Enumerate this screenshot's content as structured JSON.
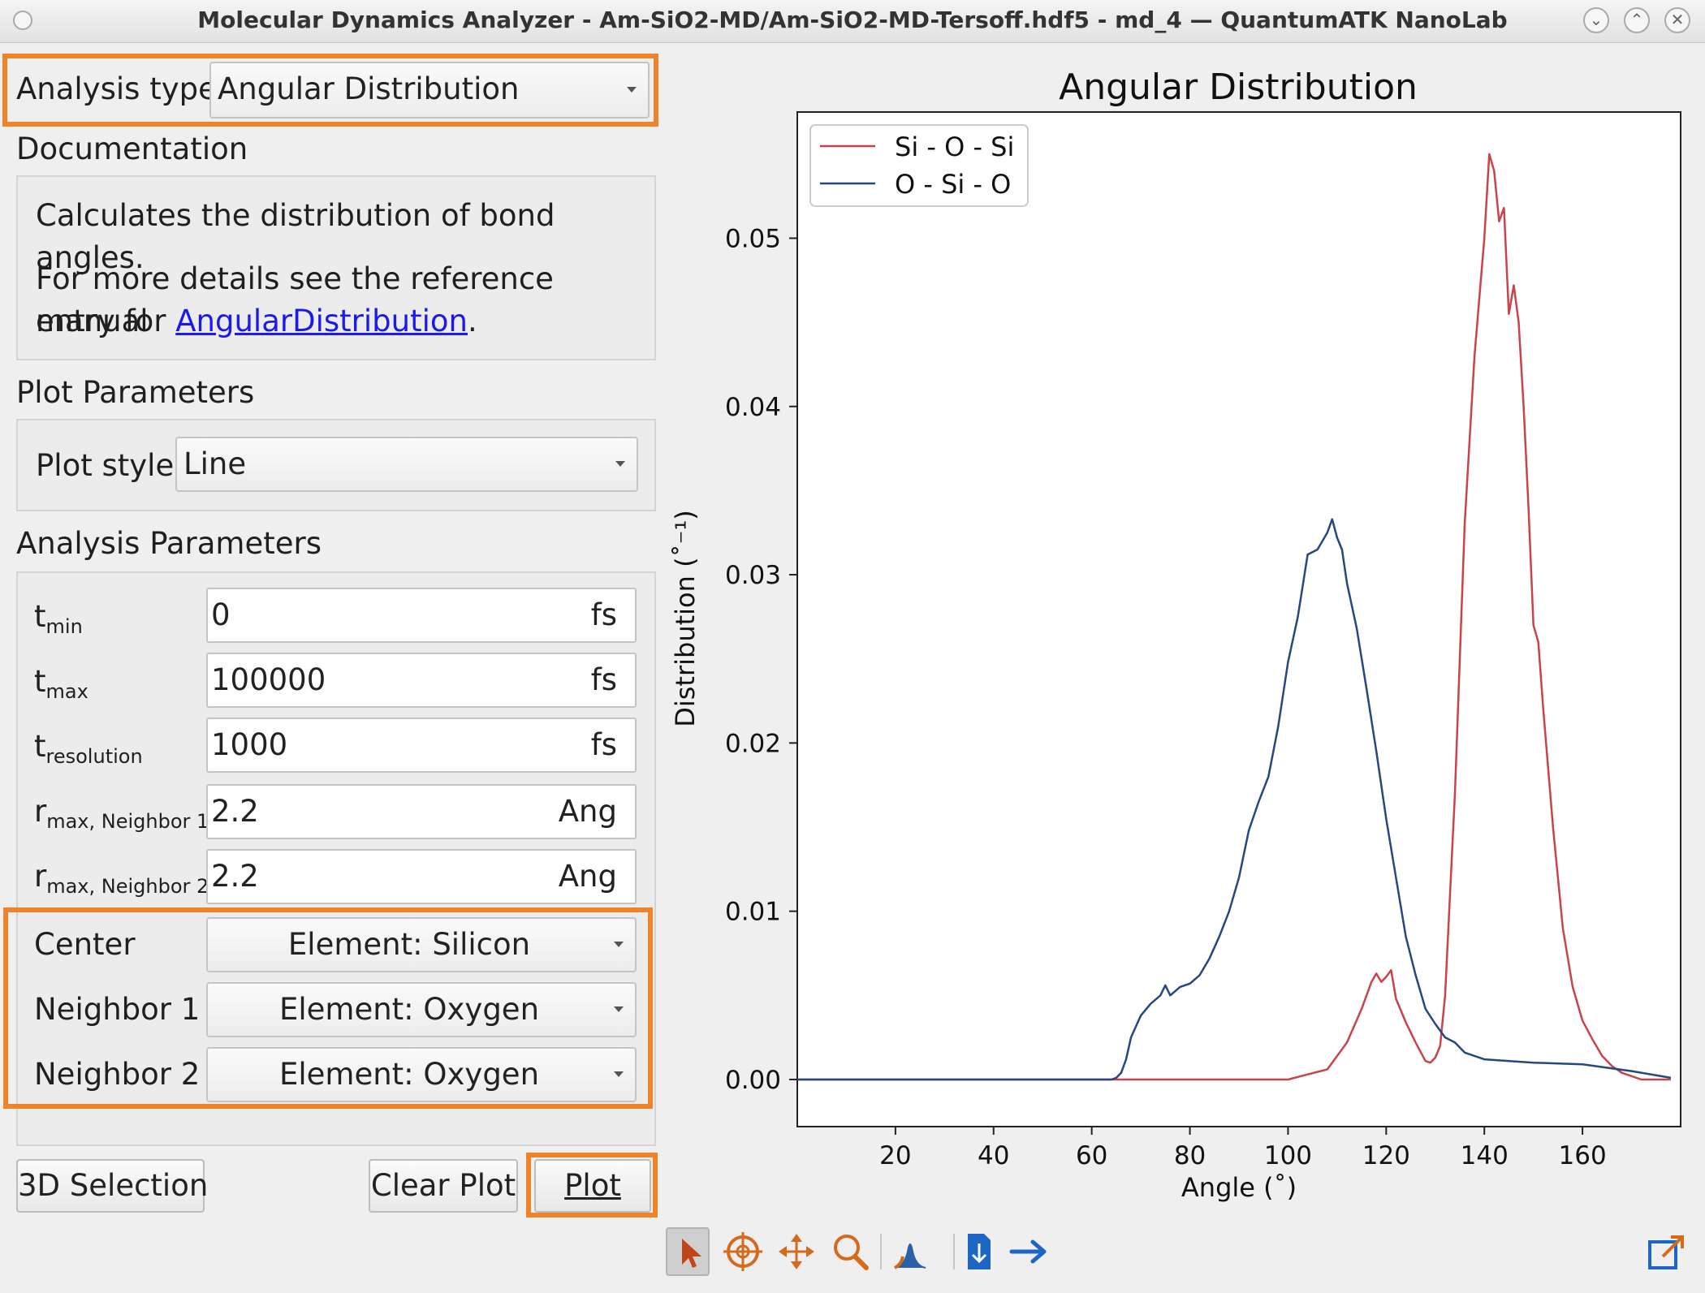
{
  "window": {
    "title": "Molecular Dynamics Analyzer - Am-SiO2-MD/Am-SiO2-MD-Tersoff.hdf5 - md_4 — QuantumATK NanoLab",
    "buttons": {
      "minimize": "⌄",
      "maximize": "⌃",
      "close": "✕"
    }
  },
  "analysis": {
    "label": "Analysis type",
    "value": "Angular Distribution"
  },
  "documentation": {
    "header": "Documentation",
    "line1": "Calculates the distribution of bond angles.",
    "line2": "For more details see the reference manual",
    "line3_prefix": "entry for ",
    "link": "AngularDistribution",
    "line3_suffix": "."
  },
  "plot_params": {
    "header": "Plot Parameters",
    "style_label": "Plot style",
    "style_value": "Line"
  },
  "analysis_params": {
    "header": "Analysis Parameters",
    "rows": [
      {
        "main": "t",
        "sub": "min",
        "value": "0",
        "unit": "fs"
      },
      {
        "main": "t",
        "sub": "max",
        "value": "100000",
        "unit": "fs"
      },
      {
        "main": "t",
        "sub": "resolution",
        "value": "1000",
        "unit": "fs"
      },
      {
        "main": "r",
        "sub": "max, Neighbor 1",
        "value": "2.2",
        "unit": "Ang"
      },
      {
        "main": "r",
        "sub": "max, Neighbor 2",
        "value": "2.2",
        "unit": "Ang"
      }
    ],
    "center": {
      "label": "Center",
      "value": "Element: Silicon"
    },
    "neighbor1": {
      "label": "Neighbor 1",
      "value": "Element: Oxygen"
    },
    "neighbor2": {
      "label": "Neighbor 2",
      "value": "Element: Oxygen"
    }
  },
  "buttons": {
    "selection": "3D Selection",
    "clear": "Clear Plot",
    "plot": "Plot"
  },
  "toolbar": {
    "icons": [
      "pointer-icon",
      "target-icon",
      "pan-icon",
      "zoom-icon",
      "peak-icon",
      "save-icon",
      "arrow-right-icon",
      "popout-icon"
    ]
  },
  "accent": {
    "highlight": "#f0832a",
    "link": "#1a1aee"
  },
  "chart_data": {
    "type": "line",
    "title": "Angular Distribution",
    "xlabel": "Angle (˚)",
    "ylabel": "Distribution (˚⁻¹)",
    "xlim": [
      0,
      180
    ],
    "ylim": [
      -0.0028,
      0.0575
    ],
    "xticks": [
      20,
      40,
      60,
      80,
      100,
      120,
      140,
      160
    ],
    "yticks": [
      0.0,
      0.01,
      0.02,
      0.03,
      0.04,
      0.05
    ],
    "ytick_labels": [
      "0.00",
      "0.01",
      "0.02",
      "0.03",
      "0.04",
      "0.05"
    ],
    "legend": "top-left",
    "series": [
      {
        "name": "Si - O - Si",
        "color": "#c9434b",
        "x": [
          0,
          100,
          104,
          108,
          112,
          115,
          117,
          118,
          119,
          120,
          121,
          122,
          124,
          126,
          128,
          129,
          130,
          131,
          132,
          134,
          136,
          138,
          140,
          141,
          142,
          143,
          144,
          145,
          146,
          147,
          148,
          149,
          150,
          151,
          152,
          154,
          156,
          158,
          160,
          162,
          164,
          166,
          168,
          170,
          172,
          174,
          176,
          178
        ],
        "y": [
          0,
          0,
          0.0003,
          0.0006,
          0.0022,
          0.0042,
          0.0058,
          0.0063,
          0.0058,
          0.0061,
          0.0065,
          0.0048,
          0.0034,
          0.0022,
          0.0011,
          0.001,
          0.0013,
          0.002,
          0.005,
          0.017,
          0.033,
          0.043,
          0.05,
          0.055,
          0.054,
          0.051,
          0.0518,
          0.0455,
          0.0472,
          0.045,
          0.04,
          0.034,
          0.027,
          0.026,
          0.022,
          0.015,
          0.009,
          0.0055,
          0.0035,
          0.0024,
          0.0014,
          0.0008,
          0.0004,
          0.0002,
          0,
          0,
          0,
          0
        ]
      },
      {
        "name": "O - Si - O",
        "color": "#24487f",
        "x": [
          0,
          64,
          65,
          66,
          67,
          68,
          70,
          72,
          74,
          75,
          76,
          78,
          80,
          82,
          84,
          86,
          88,
          90,
          92,
          94,
          96,
          98,
          100,
          102,
          104,
          106,
          108,
          109,
          110,
          111,
          112,
          114,
          116,
          118,
          120,
          122,
          124,
          126,
          128,
          130,
          132,
          134,
          136,
          140,
          150,
          160,
          170,
          178
        ],
        "y": [
          0,
          0,
          0.0001,
          0.0004,
          0.0012,
          0.0025,
          0.0038,
          0.0045,
          0.005,
          0.0056,
          0.005,
          0.0055,
          0.0057,
          0.0062,
          0.0072,
          0.0085,
          0.01,
          0.012,
          0.0148,
          0.0165,
          0.018,
          0.021,
          0.0248,
          0.0275,
          0.0312,
          0.0315,
          0.0325,
          0.0333,
          0.0322,
          0.0315,
          0.0295,
          0.0268,
          0.0232,
          0.0195,
          0.0155,
          0.012,
          0.0085,
          0.0062,
          0.0042,
          0.0033,
          0.0025,
          0.0022,
          0.0016,
          0.0012,
          0.001,
          0.0009,
          0.0005,
          0.0001
        ]
      }
    ]
  }
}
